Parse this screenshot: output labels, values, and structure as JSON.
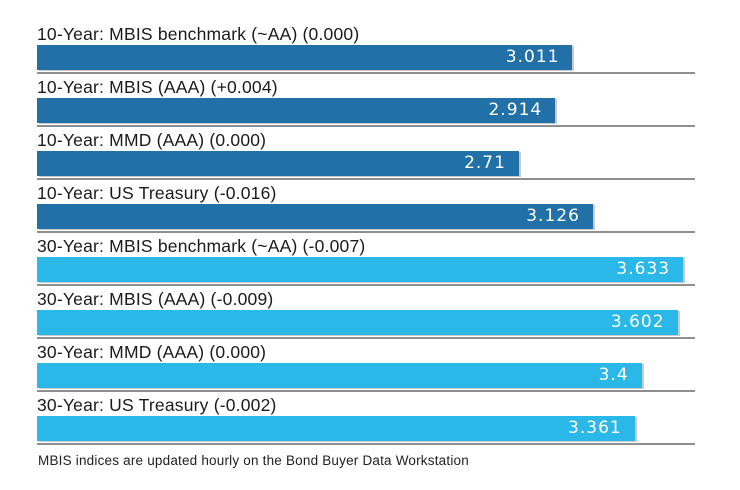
{
  "chart_data": {
    "type": "bar",
    "orientation": "horizontal",
    "title": "",
    "xlabel": "",
    "ylabel": "",
    "axis_max": 3.7,
    "grid": false,
    "legend": "none",
    "colors": {
      "ten_year": "#2170a8",
      "thirty_year": "#29b8e7"
    },
    "rows": [
      {
        "label": "10-Year: MBIS benchmark (~AA) (0.000)",
        "value": 3.011,
        "display": "3.011",
        "group": "ten_year"
      },
      {
        "label": "10-Year: MBIS (AAA) (+0.004)",
        "value": 2.914,
        "display": "2.914",
        "group": "ten_year"
      },
      {
        "label": "10-Year: MMD (AAA) (0.000)",
        "value": 2.71,
        "display": "2.71",
        "group": "ten_year"
      },
      {
        "label": "10-Year: US Treasury (-0.016)",
        "value": 3.126,
        "display": "3.126",
        "group": "ten_year"
      },
      {
        "label": "30-Year: MBIS benchmark (~AA) (-0.007)",
        "value": 3.633,
        "display": "3.633",
        "group": "thirty_year"
      },
      {
        "label": "30-Year: MBIS (AAA) (-0.009)",
        "value": 3.602,
        "display": "3.602",
        "group": "thirty_year"
      },
      {
        "label": "30-Year: MMD (AAA) (0.000)",
        "value": 3.4,
        "display": "3.4",
        "group": "thirty_year"
      },
      {
        "label": "30-Year: US Treasury (-0.002)",
        "value": 3.361,
        "display": "3.361",
        "group": "thirty_year"
      }
    ],
    "note": "MBIS indices are updated hourly on the Bond Buyer Data Workstation"
  }
}
